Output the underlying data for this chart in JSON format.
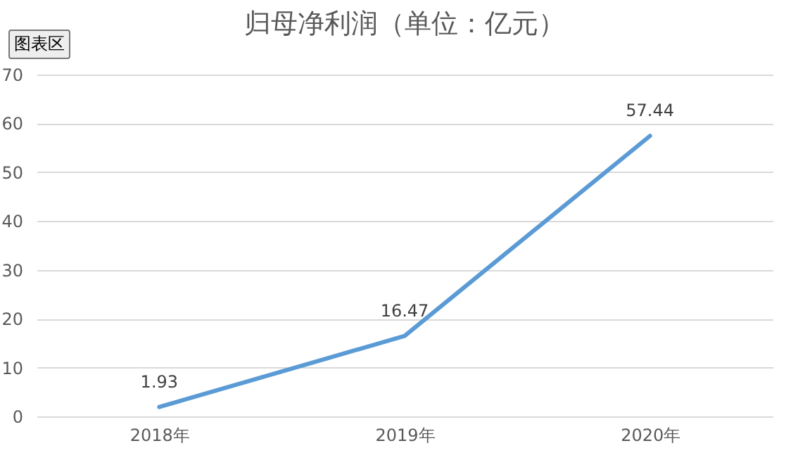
{
  "chart_data": {
    "type": "line",
    "title": "归母净利润（单位：亿元）",
    "categories": [
      "2018年",
      "2019年",
      "2020年"
    ],
    "series": [
      {
        "color": "#5b9bd5",
        "values": [
          1.93,
          16.47,
          57.44
        ]
      }
    ],
    "ylim": [
      0,
      70
    ],
    "yticks": [
      0,
      10,
      20,
      30,
      40,
      50,
      60,
      70
    ],
    "grid": "y",
    "data_labels": true,
    "legend": false,
    "annotations": [
      "图表区"
    ]
  }
}
